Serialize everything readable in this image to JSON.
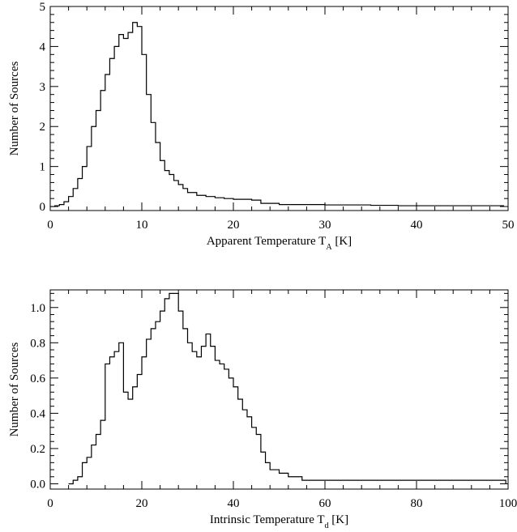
{
  "chart_data": [
    {
      "type": "line",
      "style": "step-histogram",
      "xlabel": "Apparent Temperature T",
      "xlabel_sub": "A",
      "xlabel_unit": " [K]",
      "ylabel": "Number of Sources",
      "xlim": [
        0,
        50
      ],
      "ylim": [
        -0.1,
        5
      ],
      "xticks": [
        0,
        10,
        20,
        30,
        40,
        50
      ],
      "yticks": [
        0,
        1,
        2,
        3,
        4,
        5
      ],
      "x": [
        0,
        0.5,
        1,
        1.5,
        2,
        2.5,
        3,
        3.5,
        4,
        4.5,
        5,
        5.5,
        6,
        6.5,
        7,
        7.5,
        8,
        8.5,
        9,
        9.5,
        10,
        10.5,
        11,
        11.5,
        12,
        12.5,
        13,
        13.5,
        14,
        14.5,
        15,
        16,
        17,
        18,
        19,
        20,
        21,
        22,
        23,
        25,
        30,
        35,
        38,
        40,
        45,
        49.5
      ],
      "y": [
        0.0,
        0.02,
        0.05,
        0.12,
        0.25,
        0.45,
        0.7,
        1.0,
        1.5,
        2.0,
        2.4,
        2.9,
        3.3,
        3.7,
        4.0,
        4.3,
        4.2,
        4.35,
        4.6,
        4.5,
        3.8,
        2.8,
        2.1,
        1.6,
        1.15,
        0.9,
        0.8,
        0.65,
        0.55,
        0.45,
        0.35,
        0.28,
        0.25,
        0.22,
        0.2,
        0.18,
        0.18,
        0.16,
        0.08,
        0.05,
        0.04,
        0.03,
        0.02,
        0.02,
        0.02,
        0.0
      ]
    },
    {
      "type": "line",
      "style": "step-histogram",
      "xlabel": "Intrinsic Temperature T",
      "xlabel_sub": "d",
      "xlabel_unit": " [K]",
      "ylabel": "Number of Sources",
      "xlim": [
        0,
        100
      ],
      "ylim": [
        -0.03,
        1.1
      ],
      "xticks": [
        0,
        20,
        40,
        60,
        80,
        100
      ],
      "yticks": [
        0.0,
        0.2,
        0.4,
        0.6,
        0.8,
        1.0
      ],
      "ytick_labels": [
        "0.0",
        "0.2",
        "0.4",
        "0.6",
        "0.8",
        "1.0"
      ],
      "x": [
        4,
        5,
        6,
        7,
        8,
        9,
        10,
        11,
        12,
        13,
        14,
        15,
        16,
        17,
        18,
        19,
        20,
        21,
        22,
        23,
        24,
        25,
        26,
        27,
        28,
        29,
        30,
        31,
        32,
        33,
        34,
        35,
        36,
        37,
        38,
        39,
        40,
        41,
        42,
        43,
        44,
        45,
        46,
        47,
        48,
        50,
        52,
        55,
        60,
        75,
        99.5
      ],
      "y": [
        0.0,
        0.02,
        0.04,
        0.12,
        0.15,
        0.22,
        0.28,
        0.36,
        0.68,
        0.72,
        0.75,
        0.8,
        0.52,
        0.48,
        0.55,
        0.62,
        0.72,
        0.82,
        0.88,
        0.92,
        0.98,
        1.05,
        1.08,
        1.08,
        0.98,
        0.88,
        0.8,
        0.75,
        0.72,
        0.78,
        0.85,
        0.78,
        0.7,
        0.68,
        0.65,
        0.6,
        0.55,
        0.48,
        0.42,
        0.38,
        0.32,
        0.28,
        0.18,
        0.12,
        0.08,
        0.06,
        0.04,
        0.02,
        0.02,
        0.02,
        0.0
      ]
    }
  ]
}
